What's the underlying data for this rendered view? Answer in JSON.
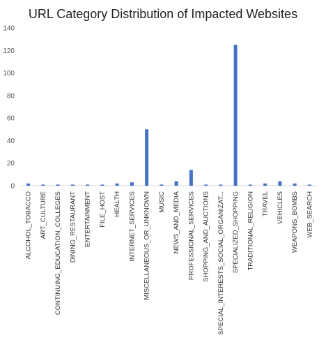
{
  "chart_data": {
    "type": "bar",
    "title": "URL Category Distribution of Impacted Websites",
    "xlabel": "",
    "ylabel": "",
    "ylim": [
      0,
      140
    ],
    "yticks": [
      0,
      20,
      40,
      60,
      80,
      100,
      120,
      140
    ],
    "grid": false,
    "legend": "none",
    "bar_color": "#4472C4",
    "categories": [
      "ALCOHOL_TOBACCO",
      "ART_CULTURE",
      "CONTINUING_EDUCATION_COLLEGES",
      "DINING_RESTAURANT",
      "ENTERTAINMENT",
      "FILE_HOST",
      "HEALTH",
      "INTERNET_SERVICES",
      "MISCELLANEOUS_OR_UNKNOWN",
      "MUSIC",
      "NEWS_AND_MEDIA",
      "PROFESSIONAL_SERVICES",
      "SHOPPING_AND_AUCTIONS",
      "SPECIAL_INTERESTS_SOCIAL_ORGANIZAT...",
      "SPECIALIZED_SHOPPING",
      "TRADITIONAL_RELIGION",
      "TRAVEL",
      "VEHICLES",
      "WEAPONS_BOMBS",
      "WEB_SEARCH"
    ],
    "values": [
      2,
      1,
      1,
      1,
      1,
      1,
      2,
      3,
      50,
      1,
      4,
      14,
      1,
      1,
      125,
      1,
      2,
      4,
      2,
      1
    ]
  }
}
